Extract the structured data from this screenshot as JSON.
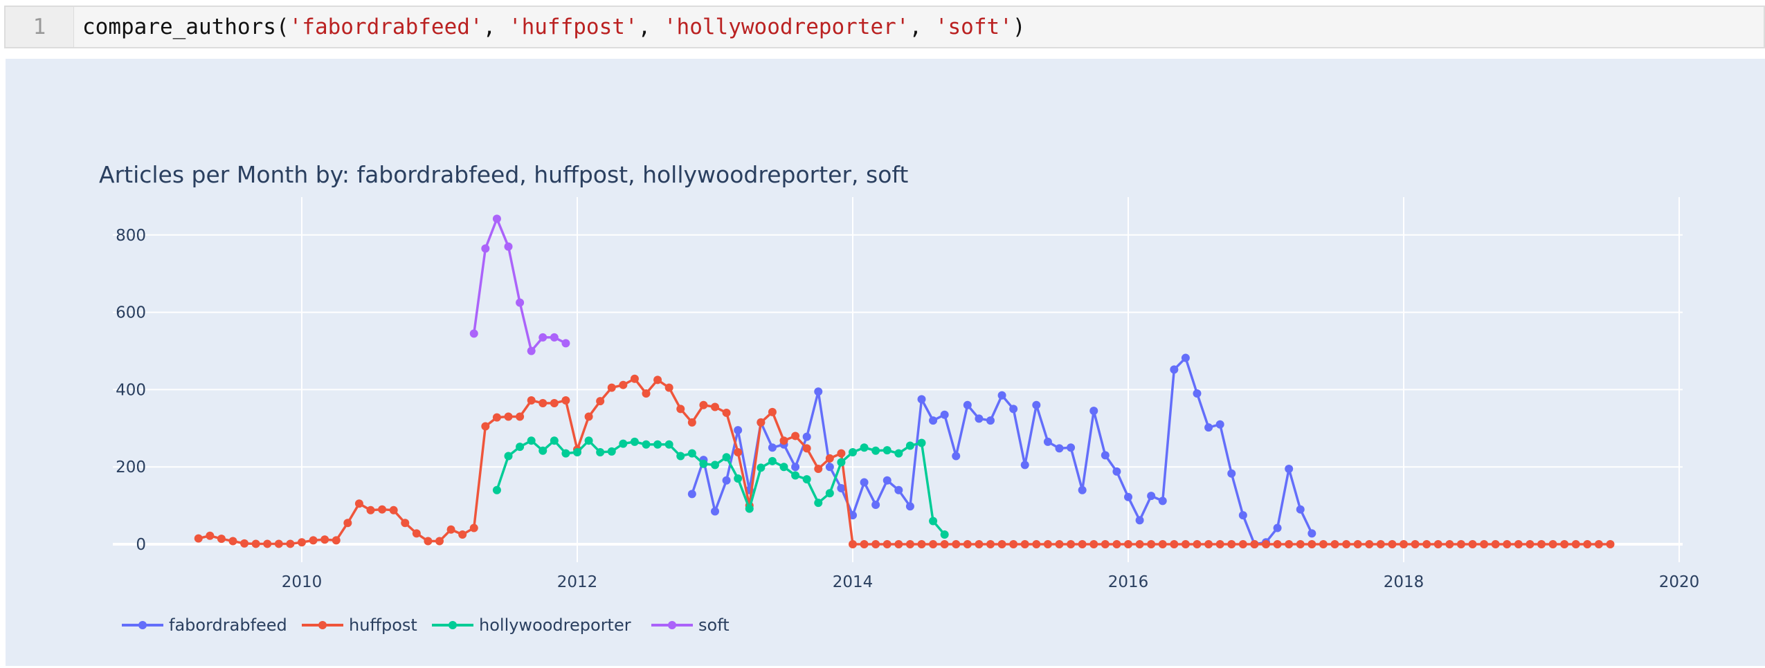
{
  "cell": {
    "line_number": "1",
    "code": {
      "func": "compare_authors(",
      "args": [
        "'fabordrabfeed'",
        "'huffpost'",
        "'hollywoodreporter'",
        "'soft'"
      ],
      "sep": ", ",
      "close": ")"
    }
  },
  "chart_data": {
    "type": "line",
    "title": "Articles per Month by: fabordrabfeed, huffpost, hollywoodreporter, soft",
    "xlabel": "",
    "ylabel": "",
    "xlim": [
      2008.6,
      2020.05
    ],
    "ylim": [
      -70,
      900
    ],
    "x_ticks": [
      "2010",
      "2012",
      "2014",
      "2016",
      "2018",
      "2020"
    ],
    "y_ticks": [
      "0",
      "200",
      "400",
      "600",
      "800"
    ],
    "grid": true,
    "legend_position": "bottom-left",
    "series": [
      {
        "name": "fabordrabfeed",
        "color": "#636efa",
        "start": "2012-11",
        "values": [
          130,
          218,
          85,
          165,
          295,
          140,
          315,
          250,
          258,
          200,
          278,
          395,
          200,
          145,
          75,
          160,
          102,
          165,
          140,
          98,
          375,
          320,
          335,
          228,
          360,
          325,
          320,
          385,
          350,
          205,
          360,
          265,
          248,
          250,
          140,
          345,
          230,
          188,
          122,
          62,
          125,
          112,
          452,
          482,
          390,
          302,
          310,
          183,
          75,
          0,
          5,
          42,
          195,
          90,
          28
        ]
      },
      {
        "name": "huffpost",
        "color": "#ef553b",
        "start": "2009-04",
        "values": [
          15,
          22,
          14,
          8,
          2,
          1,
          1,
          1,
          1,
          5,
          10,
          12,
          10,
          55,
          105,
          88,
          90,
          88,
          55,
          28,
          8,
          8,
          38,
          25,
          42,
          305,
          328,
          330,
          330,
          372,
          365,
          365,
          372,
          245,
          330,
          370,
          405,
          412,
          428,
          390,
          425,
          405,
          350,
          315,
          360,
          355,
          340,
          238,
          100,
          315,
          342,
          268,
          280,
          248,
          195,
          222,
          235,
          0,
          0,
          0,
          0,
          0,
          0,
          0,
          0,
          0,
          0,
          0,
          0,
          0,
          0,
          0,
          0,
          0,
          0,
          0,
          0,
          0,
          0,
          0,
          0,
          0,
          0,
          0,
          0,
          0,
          0,
          0,
          0,
          0,
          0,
          0,
          0,
          0,
          0,
          0,
          0,
          0,
          0,
          0,
          0,
          0,
          0,
          0,
          0,
          0,
          0,
          0,
          0,
          0,
          0,
          0,
          0,
          0,
          0,
          0,
          0,
          0,
          0,
          0,
          0,
          0,
          0,
          0
        ]
      },
      {
        "name": "hollywoodreporter",
        "color": "#00cc96",
        "start": "2011-06",
        "values": [
          140,
          228,
          252,
          268,
          242,
          268,
          235,
          238,
          268,
          238,
          240,
          260,
          265,
          258,
          258,
          258,
          228,
          235,
          208,
          205,
          225,
          170,
          92,
          198,
          215,
          200,
          178,
          168,
          107,
          132,
          212,
          238,
          250,
          242,
          243,
          235,
          255,
          262,
          60,
          25
        ]
      },
      {
        "name": "soft",
        "color": "#ab63fa",
        "start": "2011-04",
        "values": [
          545,
          765,
          842,
          770,
          625,
          500,
          535,
          535,
          520
        ]
      }
    ]
  }
}
